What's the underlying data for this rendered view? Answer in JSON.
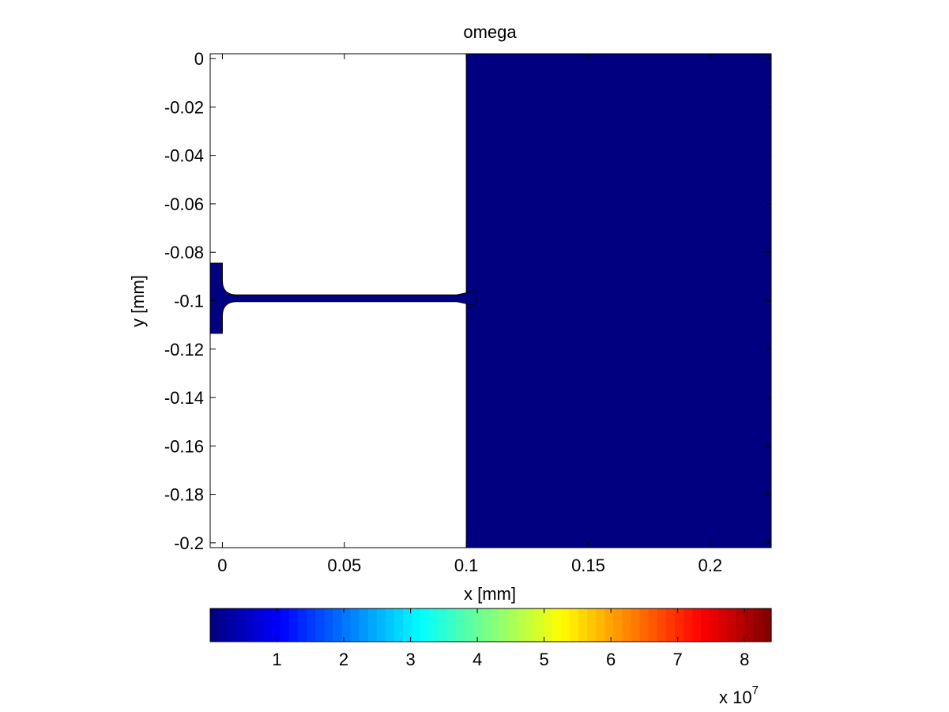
{
  "chart_data": {
    "type": "heatmap",
    "title": "omega",
    "xlabel": "x [mm]",
    "ylabel": "y [mm]",
    "xlim": [
      -0.005,
      0.225
    ],
    "ylim": [
      -0.202,
      0.002
    ],
    "x_ticks": [
      0,
      0.05,
      0.1,
      0.15,
      0.2
    ],
    "x_tick_labels": [
      "0",
      "0.05",
      "0.1",
      "0.15",
      "0.2"
    ],
    "y_ticks": [
      0,
      -0.02,
      -0.04,
      -0.06,
      -0.08,
      -0.1,
      -0.12,
      -0.14,
      -0.16,
      -0.18,
      -0.2
    ],
    "y_tick_labels": [
      "0",
      "-0.02",
      "-0.04",
      "-0.06",
      "-0.08",
      "-0.1",
      "-0.12",
      "-0.14",
      "-0.16",
      "-0.18",
      "-0.2"
    ],
    "regions": [
      {
        "name": "right-block",
        "x": [
          0.1,
          0.225
        ],
        "y": [
          -0.202,
          0.002
        ],
        "value": 0
      },
      {
        "name": "inlet-stub",
        "x": [
          -0.005,
          0
        ],
        "y": [
          -0.1135,
          -0.0845
        ],
        "value": 0
      },
      {
        "name": "channel",
        "x": [
          0,
          0.1
        ],
        "y": [
          -0.1004,
          -0.0976
        ],
        "value": 0
      }
    ],
    "colorbar": {
      "colormap": "jet",
      "range": [
        0,
        8.4
      ],
      "ticks": [
        1,
        2,
        3,
        4,
        5,
        6,
        7,
        8
      ],
      "tick_labels": [
        "1",
        "2",
        "3",
        "4",
        "5",
        "6",
        "7",
        "8"
      ],
      "multiplier_label": "x 10",
      "multiplier_exponent": "7",
      "orientation": "horizontal",
      "placement": "bottom"
    },
    "grid": false
  }
}
